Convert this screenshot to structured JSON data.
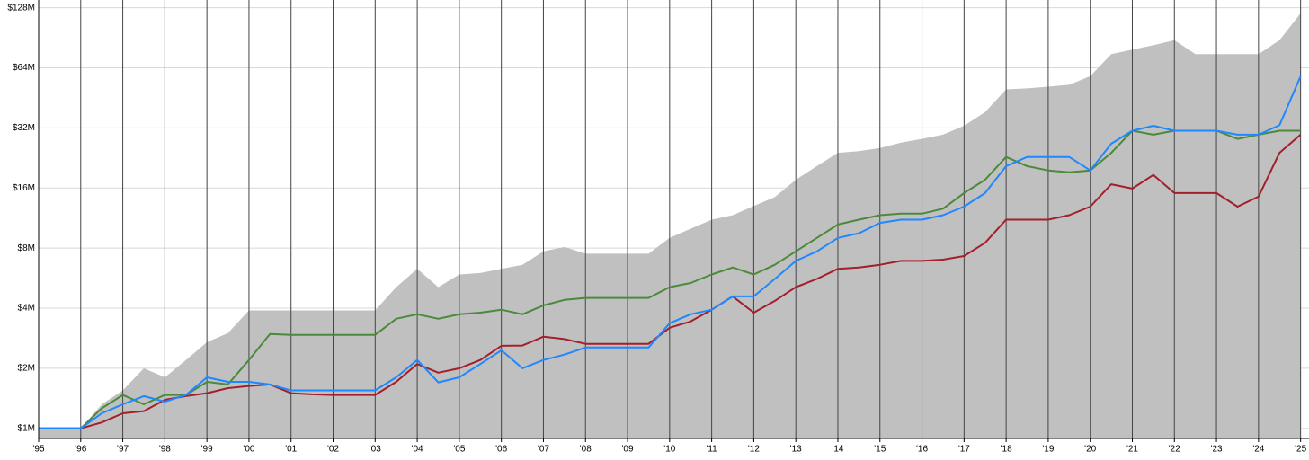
{
  "chart_data": {
    "type": "line",
    "yscale": "log",
    "grid": true,
    "year_lines": true,
    "xlim": [
      1995,
      2025.2
    ],
    "ylim": [
      0.89,
      140
    ],
    "xticks": [
      {
        "value": 1995,
        "label": "'95"
      },
      {
        "value": 1996,
        "label": "'96"
      },
      {
        "value": 1997,
        "label": "'97"
      },
      {
        "value": 1998,
        "label": "'98"
      },
      {
        "value": 1999,
        "label": "'99"
      },
      {
        "value": 2000,
        "label": "'00"
      },
      {
        "value": 2001,
        "label": "'01"
      },
      {
        "value": 2002,
        "label": "'02"
      },
      {
        "value": 2003,
        "label": "'03"
      },
      {
        "value": 2004,
        "label": "'04"
      },
      {
        "value": 2005,
        "label": "'05"
      },
      {
        "value": 2006,
        "label": "'06"
      },
      {
        "value": 2007,
        "label": "'07"
      },
      {
        "value": 2008,
        "label": "'08"
      },
      {
        "value": 2009,
        "label": "'09"
      },
      {
        "value": 2010,
        "label": "'10"
      },
      {
        "value": 2011,
        "label": "'11"
      },
      {
        "value": 2012,
        "label": "'12"
      },
      {
        "value": 2013,
        "label": "'13"
      },
      {
        "value": 2014,
        "label": "'14"
      },
      {
        "value": 2015,
        "label": "'15"
      },
      {
        "value": 2016,
        "label": "'16"
      },
      {
        "value": 2017,
        "label": "'17"
      },
      {
        "value": 2018,
        "label": "'18"
      },
      {
        "value": 2019,
        "label": "'19"
      },
      {
        "value": 2020,
        "label": "'20"
      },
      {
        "value": 2021,
        "label": "'21"
      },
      {
        "value": 2022,
        "label": "'22"
      },
      {
        "value": 2023,
        "label": "'23"
      },
      {
        "value": 2024,
        "label": "'24"
      },
      {
        "value": 2025,
        "label": "'25"
      }
    ],
    "yticks": [
      {
        "value": 1,
        "label": "$1M"
      },
      {
        "value": 2,
        "label": "$2M"
      },
      {
        "value": 4,
        "label": "$4M"
      },
      {
        "value": 8,
        "label": "$8M"
      },
      {
        "value": 16,
        "label": "$16M"
      },
      {
        "value": 32,
        "label": "$32M"
      },
      {
        "value": 64,
        "label": "$64M"
      },
      {
        "value": 128,
        "label": "$128M"
      }
    ],
    "x": [
      1995,
      1995.5,
      1996,
      1996.5,
      1997,
      1997.5,
      1998,
      1998.5,
      1999,
      1999.5,
      2000,
      2000.5,
      2001,
      2001.5,
      2002,
      2002.5,
      2003,
      2003.5,
      2004,
      2004.5,
      2005,
      2005.5,
      2006,
      2006.5,
      2007,
      2007.5,
      2008,
      2008.5,
      2009,
      2009.5,
      2010,
      2010.5,
      2011,
      2011.5,
      2012,
      2012.5,
      2013,
      2013.5,
      2014,
      2014.5,
      2015,
      2015.5,
      2016,
      2016.5,
      2017,
      2017.5,
      2018,
      2018.5,
      2019,
      2019.5,
      2020,
      2020.5,
      2021,
      2021.5,
      2022,
      2022.5,
      2023,
      2023.5,
      2024,
      2024.5,
      2025
    ],
    "series": [
      {
        "kind": "area",
        "color": "#c0c0c0",
        "values": [
          1,
          1,
          1,
          1.32,
          1.55,
          2.0,
          1.8,
          2.2,
          2.7,
          3.0,
          3.9,
          3.9,
          3.9,
          3.9,
          3.9,
          3.9,
          3.9,
          5.1,
          6.3,
          5.1,
          5.9,
          6.0,
          6.3,
          6.6,
          7.7,
          8.1,
          7.5,
          7.5,
          7.5,
          7.5,
          9.0,
          10,
          11.1,
          11.7,
          13,
          14.4,
          17.6,
          20.6,
          24,
          24.5,
          25.4,
          27,
          28.2,
          29.6,
          32.8,
          38.4,
          49.9,
          50.5,
          51.5,
          52.6,
          58.2,
          75,
          79,
          83,
          88,
          75,
          75,
          75,
          75,
          88,
          120
        ]
      },
      {
        "kind": "line",
        "color": "#4a8a3a",
        "values": [
          1,
          1,
          1,
          1.26,
          1.47,
          1.32,
          1.47,
          1.47,
          1.71,
          1.66,
          2.2,
          2.97,
          2.94,
          2.94,
          2.94,
          2.94,
          2.94,
          3.54,
          3.73,
          3.54,
          3.73,
          3.8,
          3.93,
          3.73,
          4.13,
          4.4,
          4.5,
          4.5,
          4.5,
          4.5,
          5.1,
          5.35,
          5.9,
          6.4,
          5.9,
          6.6,
          7.7,
          9.0,
          10.5,
          11.1,
          11.7,
          11.9,
          11.9,
          12.6,
          15.1,
          17.6,
          22.9,
          20.6,
          19.6,
          19.2,
          19.6,
          24,
          31,
          29.6,
          31,
          31,
          31,
          28.2,
          29.6,
          31,
          31
        ]
      },
      {
        "kind": "line",
        "color": "#a31f2c",
        "values": [
          1,
          1,
          1,
          1.07,
          1.19,
          1.22,
          1.39,
          1.45,
          1.5,
          1.59,
          1.63,
          1.66,
          1.5,
          1.48,
          1.47,
          1.47,
          1.47,
          1.71,
          2.1,
          1.9,
          2.0,
          2.2,
          2.59,
          2.6,
          2.88,
          2.8,
          2.65,
          2.65,
          2.65,
          2.65,
          3.19,
          3.43,
          3.93,
          4.58,
          3.8,
          4.35,
          5.1,
          5.6,
          6.3,
          6.4,
          6.6,
          6.9,
          6.9,
          7.0,
          7.3,
          8.5,
          11.1,
          11.1,
          11.1,
          11.7,
          12.9,
          16.7,
          15.9,
          18.6,
          15.1,
          15.1,
          15.1,
          12.9,
          14.5,
          24,
          29.6
        ]
      },
      {
        "kind": "line",
        "color": "#1e88ff",
        "values": [
          1,
          1,
          1,
          1.19,
          1.32,
          1.45,
          1.36,
          1.47,
          1.8,
          1.71,
          1.71,
          1.66,
          1.55,
          1.55,
          1.55,
          1.55,
          1.55,
          1.8,
          2.2,
          1.7,
          1.8,
          2.1,
          2.46,
          2.0,
          2.2,
          2.34,
          2.54,
          2.54,
          2.54,
          2.54,
          3.36,
          3.73,
          3.93,
          4.58,
          4.58,
          5.6,
          6.9,
          7.7,
          9.0,
          9.5,
          10.7,
          11.1,
          11.1,
          11.7,
          12.9,
          15.1,
          20.6,
          22.9,
          22.9,
          22.9,
          19.6,
          26.7,
          31,
          32.8,
          31,
          31,
          31,
          29.6,
          29.6,
          33,
          58
        ]
      }
    ]
  }
}
